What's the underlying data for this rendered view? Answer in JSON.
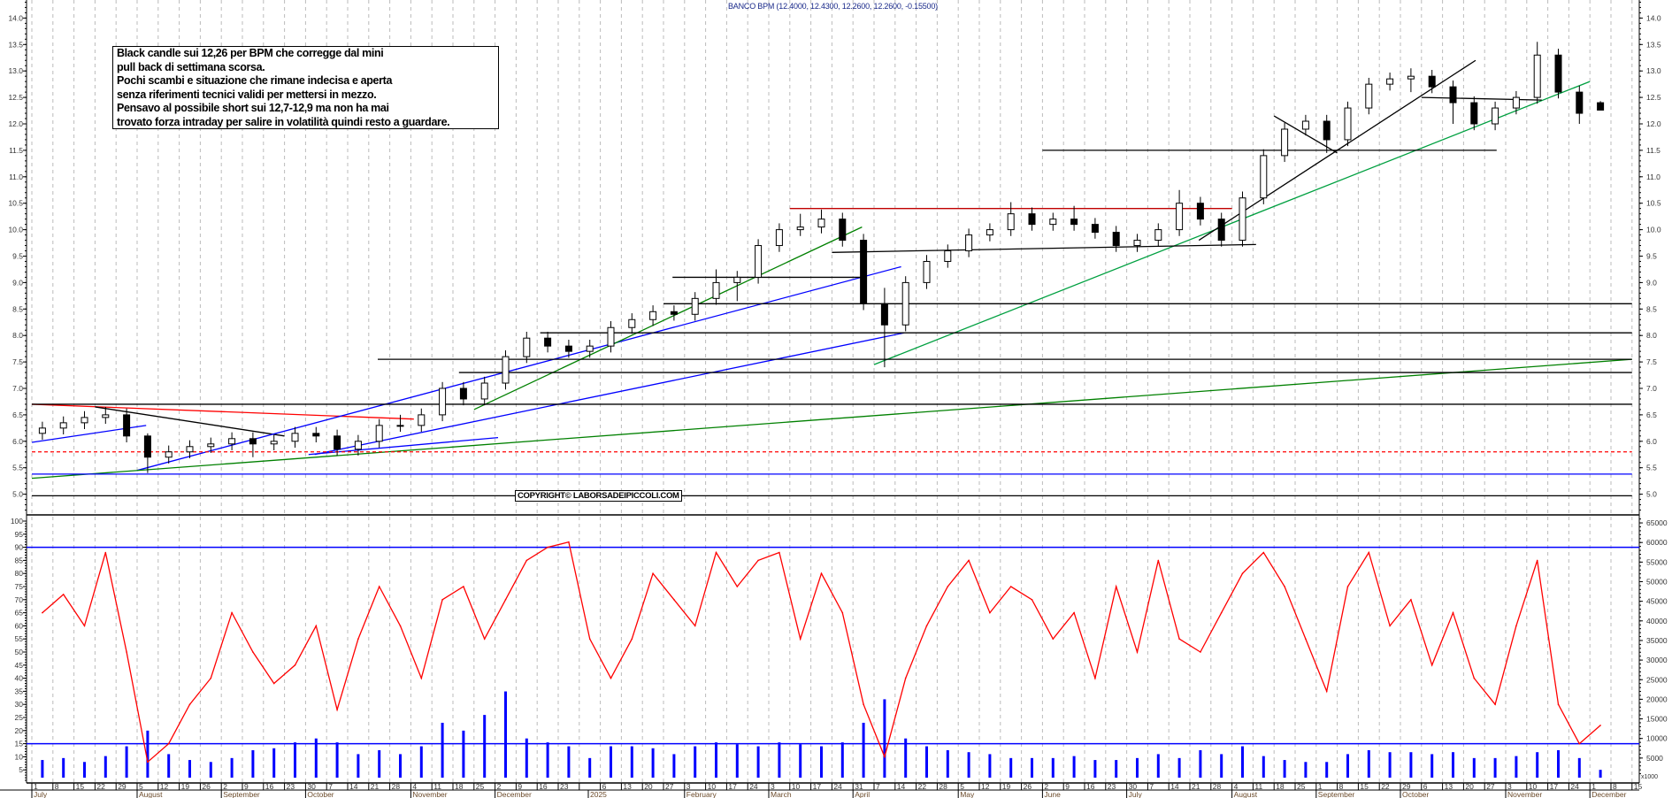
{
  "header": {
    "title": "BANCO BPM (12.4000, 12.4300, 12.2600, 12.2600, -0.15500)"
  },
  "annotation": {
    "lines": [
      "Black candle sui 12,26 per BPM che corregge dal mini",
      "pull back di settimana scorsa.",
      "Pochi scambi e situazione che rimane indecisa e aperta",
      "senza riferimenti tecnici validi per mettersi in mezzo.",
      "Pensavo al possibile short sui 12,7-12,9 ma non ha mai",
      "trovato forza intraday per salire in volatilità quindi resto a guardare."
    ]
  },
  "watermark": "COPYRIGHT© LABORSADEIPICCOLI.COM",
  "colors": {
    "candle": "#000000",
    "oscillator": "#ff0000",
    "volume": "#0000ff",
    "grid": "#bbbbbb"
  },
  "chart_data": [
    {
      "type": "candlestick",
      "title": "BANCO BPM (12.4000, 12.4300, 12.2600, 12.2600, -0.15500)",
      "period": "weekly approximation of daily candles",
      "x_start": "2024-07-01",
      "x_end": "2025-12-15",
      "ylim": [
        4.6,
        14.35
      ],
      "y_ticks": [
        "5.0",
        "5.5",
        "6.0",
        "6.5",
        "7.0",
        "7.5",
        "8.0",
        "8.5",
        "9.0",
        "9.5",
        "10.0",
        "10.5",
        "11.0",
        "11.5",
        "12.0",
        "12.5",
        "13.0",
        "13.5",
        "14.0"
      ],
      "ohlc": [
        [
          6.15,
          6.37,
          6.03,
          6.25
        ],
        [
          6.25,
          6.47,
          6.13,
          6.35
        ],
        [
          6.35,
          6.57,
          6.23,
          6.45
        ],
        [
          6.45,
          6.65,
          6.33,
          6.5
        ],
        [
          6.5,
          6.62,
          5.98,
          6.1
        ],
        [
          6.1,
          6.15,
          5.4,
          5.7
        ],
        [
          5.7,
          5.92,
          5.58,
          5.8
        ],
        [
          5.8,
          6.02,
          5.68,
          5.9
        ],
        [
          5.9,
          6.07,
          5.78,
          5.95
        ],
        [
          5.95,
          6.17,
          5.83,
          6.05
        ],
        [
          6.05,
          6.17,
          5.7,
          5.95
        ],
        [
          5.95,
          6.12,
          5.83,
          6.0
        ],
        [
          6.0,
          6.27,
          5.88,
          6.15
        ],
        [
          6.15,
          6.27,
          5.98,
          6.1
        ],
        [
          6.1,
          6.22,
          5.73,
          5.85
        ],
        [
          5.85,
          6.12,
          5.73,
          6.0
        ],
        [
          6.0,
          6.42,
          5.88,
          6.3
        ],
        [
          6.3,
          6.5,
          6.18,
          6.3
        ],
        [
          6.3,
          6.62,
          6.18,
          6.5
        ],
        [
          6.5,
          7.12,
          6.38,
          7.0
        ],
        [
          7.0,
          7.12,
          6.68,
          6.8
        ],
        [
          6.8,
          7.22,
          6.68,
          7.1
        ],
        [
          7.1,
          7.72,
          6.98,
          7.6
        ],
        [
          7.6,
          8.07,
          7.48,
          7.95
        ],
        [
          7.95,
          8.07,
          7.68,
          7.8
        ],
        [
          7.8,
          7.92,
          7.58,
          7.7
        ],
        [
          7.7,
          7.92,
          7.58,
          7.8
        ],
        [
          7.8,
          8.27,
          7.68,
          8.15
        ],
        [
          8.15,
          8.42,
          8.03,
          8.3
        ],
        [
          8.3,
          8.57,
          8.18,
          8.45
        ],
        [
          8.45,
          8.57,
          8.28,
          8.4
        ],
        [
          8.4,
          8.82,
          8.28,
          8.7
        ],
        [
          8.7,
          9.25,
          8.58,
          9.0
        ],
        [
          9.0,
          9.22,
          8.65,
          9.1
        ],
        [
          9.1,
          9.82,
          8.98,
          9.7
        ],
        [
          9.7,
          10.12,
          9.58,
          10.0
        ],
        [
          10.0,
          10.3,
          9.88,
          10.05
        ],
        [
          10.05,
          10.38,
          9.93,
          10.2
        ],
        [
          10.2,
          10.32,
          9.68,
          9.8
        ],
        [
          9.8,
          9.92,
          8.48,
          8.6
        ],
        [
          8.6,
          8.9,
          7.4,
          8.2
        ],
        [
          8.2,
          9.12,
          8.08,
          9.0
        ],
        [
          9.0,
          9.52,
          8.88,
          9.4
        ],
        [
          9.4,
          9.72,
          9.28,
          9.6
        ],
        [
          9.6,
          10.02,
          9.48,
          9.9
        ],
        [
          9.9,
          10.12,
          9.78,
          10.0
        ],
        [
          10.0,
          10.52,
          9.88,
          10.3
        ],
        [
          10.3,
          10.42,
          9.98,
          10.1
        ],
        [
          10.1,
          10.32,
          9.98,
          10.2
        ],
        [
          10.2,
          10.45,
          9.98,
          10.1
        ],
        [
          10.1,
          10.22,
          9.83,
          9.95
        ],
        [
          9.95,
          10.07,
          9.58,
          9.7
        ],
        [
          9.7,
          9.92,
          9.58,
          9.8
        ],
        [
          9.8,
          10.12,
          9.68,
          10.0
        ],
        [
          10.0,
          10.75,
          9.88,
          10.5
        ],
        [
          10.5,
          10.62,
          10.08,
          10.2
        ],
        [
          10.2,
          10.32,
          9.68,
          9.8
        ],
        [
          9.8,
          10.72,
          9.68,
          10.6
        ],
        [
          10.6,
          11.52,
          10.48,
          11.4
        ],
        [
          11.4,
          12.02,
          11.28,
          11.9
        ],
        [
          11.9,
          12.17,
          11.78,
          12.05
        ],
        [
          12.05,
          12.17,
          11.45,
          11.7
        ],
        [
          11.7,
          12.42,
          11.58,
          12.3
        ],
        [
          12.3,
          12.87,
          12.18,
          12.75
        ],
        [
          12.75,
          12.97,
          12.63,
          12.85
        ],
        [
          12.85,
          13.05,
          12.6,
          12.9
        ],
        [
          12.9,
          13.02,
          12.58,
          12.7
        ],
        [
          12.7,
          12.82,
          12.0,
          12.4
        ],
        [
          12.4,
          12.52,
          11.88,
          12.0
        ],
        [
          12.0,
          12.42,
          11.88,
          12.3
        ],
        [
          12.3,
          12.62,
          12.18,
          12.5
        ],
        [
          12.5,
          13.55,
          12.38,
          13.3
        ],
        [
          13.3,
          13.42,
          12.48,
          12.6
        ],
        [
          12.6,
          12.72,
          12.0,
          12.2
        ],
        [
          12.4,
          12.43,
          12.26,
          12.26
        ]
      ],
      "lines": [
        {
          "from": [
            "2024-07-01",
            6.7
          ],
          "to": [
            "2024-11-05",
            6.42
          ],
          "color": "#ff0000"
        },
        {
          "from": [
            "2024-07-22",
            6.65
          ],
          "to": [
            "2024-09-23",
            6.1
          ],
          "color": "#000000"
        },
        {
          "from": [
            "2024-07-01",
            5.98
          ],
          "to": [
            "2024-08-08",
            6.3
          ],
          "color": "#0000ff"
        },
        {
          "from": [
            "2024-08-05",
            5.45
          ],
          "to": [
            "2025-04-16",
            9.3
          ],
          "color": "#0000ff"
        },
        {
          "from": [
            "2024-10-03",
            5.75
          ],
          "to": [
            "2025-04-17",
            8.05
          ],
          "color": "#0000ff"
        },
        {
          "from": [
            "2024-10-01",
            5.75
          ],
          "to": [
            "2024-12-03",
            6.07
          ],
          "color": "#0000ff"
        },
        {
          "from": [
            "2024-07-01",
            5.3
          ],
          "to": [
            "2025-12-15",
            7.55
          ],
          "color": "#008000"
        },
        {
          "from": [
            "2024-11-25",
            6.6
          ],
          "to": [
            "2025-04-03",
            10.05
          ],
          "color": "#008000"
        },
        {
          "from": [
            "2025-04-07",
            7.45
          ],
          "to": [
            "2025-12-01",
            12.8
          ],
          "color": "#00a040"
        },
        {
          "from": [
            "2025-07-24",
            9.8
          ],
          "to": [
            "2025-10-24",
            13.2
          ],
          "color": "#000000"
        },
        {
          "from": [
            "2025-08-18",
            12.15
          ],
          "to": [
            "2025-09-08",
            11.45
          ],
          "color": "#000000"
        },
        {
          "from": [
            "2025-06-02",
            11.5
          ],
          "to": [
            "2025-10-31",
            11.5
          ],
          "color": "#000000"
        },
        {
          "from": [
            "2025-10-06",
            12.5
          ],
          "to": [
            "2025-11-15",
            12.45
          ],
          "color": "#000000"
        },
        {
          "from": [
            "2025-03-10",
            10.4
          ],
          "to": [
            "2025-08-04",
            10.4
          ],
          "color": "#c00000"
        },
        {
          "from": [
            "2025-03-24",
            9.57
          ],
          "to": [
            "2025-08-12",
            9.72
          ],
          "color": "#000000"
        },
        {
          "from": [
            "2025-01-30",
            9.1
          ],
          "to": [
            "2025-04-03",
            9.1
          ],
          "color": "#000000"
        },
        {
          "from": [
            "2025-01-27",
            8.6
          ],
          "to": [
            "2025-12-15",
            8.6
          ],
          "color": "#000000"
        },
        {
          "from": [
            "2024-12-17",
            8.05
          ],
          "to": [
            "2025-12-15",
            8.05
          ],
          "color": "#000000"
        },
        {
          "from": [
            "2024-10-24",
            7.55
          ],
          "to": [
            "2025-12-15",
            7.55
          ],
          "color": "#000000"
        },
        {
          "from": [
            "2024-11-20",
            7.3
          ],
          "to": [
            "2025-12-15",
            7.3
          ],
          "color": "#000000"
        },
        {
          "from": [
            "2024-07-01",
            6.7
          ],
          "to": [
            "2025-12-15",
            6.7
          ],
          "color": "#000000"
        },
        {
          "from": [
            "2024-07-01",
            5.8
          ],
          "to": [
            "2025-12-15",
            5.8
          ],
          "color": "#ff0000",
          "dashed": true
        },
        {
          "from": [
            "2024-07-01",
            5.38
          ],
          "to": [
            "2025-12-15",
            5.38
          ],
          "color": "#0000ff"
        },
        {
          "from": [
            "2024-07-01",
            4.97
          ],
          "to": [
            "2025-12-15",
            4.97
          ],
          "color": "#000000"
        }
      ]
    },
    {
      "type": "line",
      "ylim": [
        0,
        100
      ],
      "y_ticks": [
        "5",
        "10",
        "15",
        "20",
        "25",
        "30",
        "35",
        "40",
        "45",
        "50",
        "55",
        "60",
        "65",
        "70",
        "75",
        "80",
        "85",
        "90",
        "95",
        "100"
      ],
      "reference_lines": [
        90,
        15
      ],
      "values": [
        65,
        72,
        60,
        88,
        50,
        8,
        15,
        30,
        40,
        65,
        50,
        38,
        45,
        60,
        28,
        55,
        75,
        60,
        40,
        70,
        75,
        55,
        70,
        85,
        90,
        92,
        55,
        40,
        55,
        80,
        70,
        60,
        88,
        75,
        85,
        88,
        55,
        80,
        65,
        30,
        10,
        40,
        60,
        75,
        85,
        65,
        75,
        70,
        55,
        65,
        40,
        75,
        50,
        85,
        55,
        50,
        65,
        80,
        88,
        75,
        55,
        35,
        75,
        88,
        60,
        70,
        45,
        65,
        40,
        30,
        60,
        85,
        30,
        15,
        22
      ]
    },
    {
      "type": "bar",
      "ylim": [
        0,
        66500
      ],
      "y_ticks": [
        "5000",
        "10000",
        "15000",
        "20000",
        "25000",
        "30000",
        "35000",
        "40000",
        "45000",
        "50000",
        "55000",
        "60000",
        "65000"
      ],
      "unit_label": "x1000",
      "values": [
        4500,
        5000,
        4000,
        5500,
        8000,
        12000,
        6000,
        4500,
        4000,
        5000,
        7000,
        7500,
        9000,
        10000,
        9000,
        6000,
        7000,
        6000,
        8000,
        14000,
        12000,
        16000,
        22000,
        10000,
        9000,
        8000,
        5000,
        8000,
        8000,
        7500,
        6000,
        8000,
        9000,
        8500,
        8000,
        9000,
        8500,
        8000,
        9000,
        14000,
        20000,
        10000,
        8000,
        7000,
        6500,
        6000,
        5000,
        5000,
        5000,
        5500,
        4500,
        4500,
        5000,
        6000,
        5000,
        7000,
        6000,
        8000,
        5500,
        4500,
        4000,
        4000,
        6000,
        7000,
        6500,
        6500,
        6000,
        6500,
        5000,
        5000,
        5500,
        6500,
        7000,
        5000,
        2000
      ]
    }
  ],
  "x_axis": {
    "week_labels": [
      "1",
      "8",
      "15",
      "22",
      "29",
      "5",
      "12",
      "19",
      "26",
      "2",
      "9",
      "16",
      "23",
      "30",
      "7",
      "14",
      "21",
      "28",
      "4",
      "11",
      "18",
      "25",
      "2",
      "9",
      "16",
      "23",
      "",
      "6",
      "13",
      "20",
      "27",
      "3",
      "10",
      "17",
      "24",
      "3",
      "10",
      "17",
      "24",
      "31",
      "7",
      "14",
      "22",
      "28",
      "5",
      "12",
      "19",
      "26",
      "2",
      "9",
      "16",
      "23",
      "30",
      "7",
      "14",
      "21",
      "28",
      "4",
      "11",
      "18",
      "25",
      "1",
      "8",
      "15",
      "22",
      "29",
      "6",
      "13",
      "20",
      "27",
      "3",
      "10",
      "17",
      "24",
      "1",
      "8",
      "15"
    ],
    "months": [
      {
        "label": "July",
        "date": "2024-07-01"
      },
      {
        "label": "August",
        "date": "2024-08-05"
      },
      {
        "label": "September",
        "date": "2024-09-02"
      },
      {
        "label": "October",
        "date": "2024-09-30"
      },
      {
        "label": "November",
        "date": "2024-11-04"
      },
      {
        "label": "December",
        "date": "2024-12-02"
      },
      {
        "label": "2025",
        "date": "2025-01-02"
      },
      {
        "label": "February",
        "date": "2025-02-03"
      },
      {
        "label": "March",
        "date": "2025-03-03"
      },
      {
        "label": "April",
        "date": "2025-03-31"
      },
      {
        "label": "May",
        "date": "2025-05-05"
      },
      {
        "label": "June",
        "date": "2025-06-02"
      },
      {
        "label": "July",
        "date": "2025-06-30"
      },
      {
        "label": "August",
        "date": "2025-08-04"
      },
      {
        "label": "September",
        "date": "2025-09-01"
      },
      {
        "label": "October",
        "date": "2025-09-29"
      },
      {
        "label": "November",
        "date": "2025-11-03"
      },
      {
        "label": "December",
        "date": "2025-12-01"
      }
    ]
  }
}
